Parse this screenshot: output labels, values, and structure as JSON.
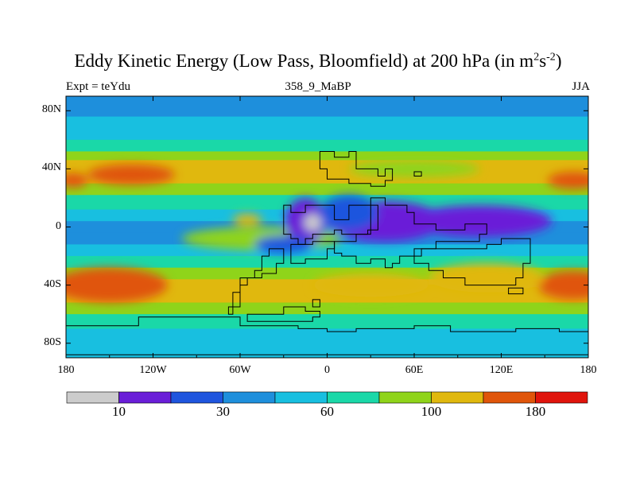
{
  "chart_data": {
    "type": "heatmap",
    "title_main": "Eddy Kinetic Energy (Low Pass, Bloomfield) at 200 hPa (in m",
    "title_sup1": "2",
    "title_mid": "s",
    "title_sup2": "-2",
    "title_end": ")",
    "subtitle_left": "Expt = teYdu",
    "subtitle_center": "358_9_MaBP",
    "subtitle_right": "JJA",
    "xlim": [
      -180,
      180
    ],
    "ylim": [
      -90,
      90
    ],
    "x_ticks": [
      {
        "value": -180,
        "label": "180"
      },
      {
        "value": -120,
        "label": "120W"
      },
      {
        "value": -60,
        "label": "60W"
      },
      {
        "value": 0,
        "label": "0"
      },
      {
        "value": 60,
        "label": "60E"
      },
      {
        "value": 120,
        "label": "120E"
      },
      {
        "value": 180,
        "label": "180"
      }
    ],
    "y_ticks": [
      {
        "value": 80,
        "label": "80N"
      },
      {
        "value": 40,
        "label": "40N"
      },
      {
        "value": 0,
        "label": "0"
      },
      {
        "value": -40,
        "label": "40S"
      },
      {
        "value": -80,
        "label": "80S"
      }
    ],
    "colorbar": {
      "colors": [
        "#cccccc",
        "#6a1ed8",
        "#1f55de",
        "#1e8fdc",
        "#18bfe0",
        "#1ad8a8",
        "#8fd41a",
        "#e0b80e",
        "#e0550a",
        "#e0140c"
      ],
      "labels": [
        {
          "index": 1,
          "label": "10"
        },
        {
          "index": 3,
          "label": "30"
        },
        {
          "index": 5,
          "label": "60"
        },
        {
          "index": 7,
          "label": "100"
        },
        {
          "index": 9,
          "label": "180"
        }
      ]
    },
    "field_levels": [
      {
        "lat": 90,
        "level": 3
      },
      {
        "lat": 82,
        "level": 3
      },
      {
        "lat": 76,
        "level": 4
      },
      {
        "lat": 66,
        "level": 4
      },
      {
        "lat": 60,
        "level": 5
      },
      {
        "lat": 52,
        "level": 6
      },
      {
        "lat": 46,
        "level": 7
      },
      {
        "lat": 38,
        "level": 7
      },
      {
        "lat": 30,
        "level": 6
      },
      {
        "lat": 22,
        "level": 5
      },
      {
        "lat": 12,
        "level": 4
      },
      {
        "lat": 4,
        "level": 3
      },
      {
        "lat": -4,
        "level": 3
      },
      {
        "lat": -12,
        "level": 4
      },
      {
        "lat": -20,
        "level": 5
      },
      {
        "lat": -28,
        "level": 6
      },
      {
        "lat": -36,
        "level": 7
      },
      {
        "lat": -44,
        "level": 7
      },
      {
        "lat": -52,
        "level": 6
      },
      {
        "lat": -60,
        "level": 5
      },
      {
        "lat": -70,
        "level": 4
      },
      {
        "lat": -80,
        "level": 4
      },
      {
        "lat": -90,
        "level": 3
      }
    ],
    "features": [
      {
        "lon": -135,
        "lat": 36,
        "rlon": 30,
        "rlat": 7,
        "level": 8
      },
      {
        "lon": 170,
        "lat": 32,
        "rlon": 18,
        "rlat": 6,
        "level": 8
      },
      {
        "lon": -175,
        "lat": 32,
        "rlon": 10,
        "rlat": 5,
        "level": 8
      },
      {
        "lon": -150,
        "lat": -40,
        "rlon": 40,
        "rlat": 12,
        "level": 8
      },
      {
        "lon": 170,
        "lat": -40,
        "rlon": 25,
        "rlat": 10,
        "level": 8
      },
      {
        "lon": -45,
        "lat": -8,
        "rlon": 55,
        "rlat": 8,
        "level": 6
      },
      {
        "lon": 30,
        "lat": -40,
        "rlon": 40,
        "rlat": 8,
        "level": 7
      },
      {
        "lon": 110,
        "lat": -35,
        "rlon": 40,
        "rlat": 10,
        "level": 7
      },
      {
        "lon": 60,
        "lat": 40,
        "rlon": 45,
        "rlat": 6,
        "level": 6
      },
      {
        "lon": 40,
        "lat": 4,
        "rlon": 40,
        "rlat": 14,
        "level": 1
      },
      {
        "lon": 105,
        "lat": 4,
        "rlon": 50,
        "rlat": 11,
        "level": 1
      },
      {
        "lon": -15,
        "lat": 4,
        "rlon": 14,
        "rlat": 16,
        "level": 1
      },
      {
        "lon": -10,
        "lat": 3,
        "rlon": 6,
        "rlat": 6,
        "level": 0
      },
      {
        "lon": 15,
        "lat": 10,
        "rlon": 20,
        "rlat": 12,
        "level": 2
      },
      {
        "lon": -30,
        "lat": -12,
        "rlon": 20,
        "rlat": 6,
        "level": 2
      },
      {
        "lon": -55,
        "lat": 5,
        "rlon": 10,
        "rlat": 4,
        "level": 7
      }
    ],
    "continent_outlines": [
      [
        [
          -5,
          52
        ],
        [
          5,
          52
        ],
        [
          5,
          48
        ],
        [
          15,
          48
        ],
        [
          15,
          52
        ],
        [
          20,
          52
        ],
        [
          20,
          40
        ],
        [
          30,
          40
        ],
        [
          35,
          35
        ],
        [
          40,
          35
        ],
        [
          40,
          40
        ],
        [
          45,
          40
        ],
        [
          45,
          32
        ],
        [
          40,
          28
        ],
        [
          30,
          30
        ],
        [
          15,
          33
        ],
        [
          0,
          33
        ],
        [
          0,
          40
        ],
        [
          -5,
          40
        ]
      ],
      [
        [
          -30,
          15
        ],
        [
          -25,
          15
        ],
        [
          -25,
          10
        ],
        [
          -15,
          10
        ],
        [
          -15,
          15
        ],
        [
          5,
          15
        ],
        [
          5,
          5
        ],
        [
          15,
          5
        ],
        [
          15,
          15
        ],
        [
          30,
          15
        ],
        [
          35,
          8
        ],
        [
          35,
          -2
        ],
        [
          28,
          -5
        ],
        [
          20,
          -5
        ],
        [
          10,
          -2
        ],
        [
          5,
          -5
        ],
        [
          -5,
          -5
        ],
        [
          -10,
          -8
        ],
        [
          -15,
          -12
        ],
        [
          -20,
          -8
        ],
        [
          -25,
          -5
        ],
        [
          -30,
          0
        ]
      ],
      [
        [
          30,
          20
        ],
        [
          35,
          20
        ],
        [
          40,
          15
        ],
        [
          55,
          15
        ],
        [
          55,
          10
        ],
        [
          60,
          10
        ],
        [
          60,
          2
        ],
        [
          70,
          2
        ],
        [
          75,
          -2
        ],
        [
          90,
          -2
        ],
        [
          95,
          2
        ],
        [
          100,
          2
        ],
        [
          110,
          -5
        ],
        [
          105,
          -10
        ],
        [
          95,
          -10
        ],
        [
          85,
          -10
        ],
        [
          75,
          -15
        ],
        [
          65,
          -20
        ],
        [
          50,
          -25
        ],
        [
          45,
          -28
        ],
        [
          40,
          -22
        ],
        [
          30,
          -25
        ],
        [
          20,
          -20
        ],
        [
          10,
          -18
        ],
        [
          5,
          -10
        ],
        [
          20,
          -5
        ],
        [
          30,
          0
        ],
        [
          30,
          10
        ]
      ],
      [
        [
          -35,
          -15
        ],
        [
          -30,
          -15
        ],
        [
          -30,
          -25
        ],
        [
          -35,
          -32
        ],
        [
          -45,
          -35
        ],
        [
          -55,
          -40
        ],
        [
          -60,
          -45
        ],
        [
          -60,
          -55
        ],
        [
          -65,
          -60
        ],
        [
          -68,
          -55
        ],
        [
          -65,
          -45
        ],
        [
          -60,
          -35
        ],
        [
          -50,
          -30
        ],
        [
          -45,
          -20
        ],
        [
          -40,
          -15
        ]
      ],
      [
        [
          -25,
          -12
        ],
        [
          -10,
          -10
        ],
        [
          0,
          -10
        ],
        [
          5,
          -15
        ],
        [
          0,
          -22
        ],
        [
          -15,
          -25
        ],
        [
          -25,
          -20
        ]
      ],
      [
        [
          -55,
          -60
        ],
        [
          -40,
          -60
        ],
        [
          -30,
          -55
        ],
        [
          -15,
          -58
        ],
        [
          -5,
          -62
        ],
        [
          -10,
          -65
        ],
        [
          -30,
          -65
        ],
        [
          -50,
          -65
        ]
      ],
      [
        [
          60,
          -15
        ],
        [
          90,
          -15
        ],
        [
          110,
          -12
        ],
        [
          120,
          -8
        ],
        [
          135,
          -8
        ],
        [
          140,
          -12
        ],
        [
          140,
          -25
        ],
        [
          135,
          -35
        ],
        [
          130,
          -40
        ],
        [
          110,
          -40
        ],
        [
          95,
          -35
        ],
        [
          80,
          -30
        ],
        [
          70,
          -25
        ]
      ],
      [
        [
          -180,
          -68
        ],
        [
          -150,
          -68
        ],
        [
          -130,
          -62
        ],
        [
          -110,
          -62
        ],
        [
          -90,
          -62
        ],
        [
          -60,
          -68
        ],
        [
          -20,
          -70
        ],
        [
          0,
          -72
        ],
        [
          20,
          -70
        ],
        [
          60,
          -68
        ],
        [
          85,
          -72
        ],
        [
          110,
          -72
        ],
        [
          130,
          -70
        ],
        [
          160,
          -72
        ],
        [
          180,
          -70
        ],
        [
          180,
          -88
        ],
        [
          -180,
          -88
        ]
      ],
      [
        [
          -10,
          -50
        ],
        [
          -5,
          -50
        ],
        [
          -5,
          -55
        ],
        [
          -10,
          -55
        ]
      ],
      [
        [
          125,
          -42
        ],
        [
          135,
          -42
        ],
        [
          135,
          -46
        ],
        [
          125,
          -46
        ]
      ],
      [
        [
          60,
          35
        ],
        [
          65,
          35
        ],
        [
          65,
          38
        ],
        [
          60,
          38
        ]
      ]
    ]
  }
}
